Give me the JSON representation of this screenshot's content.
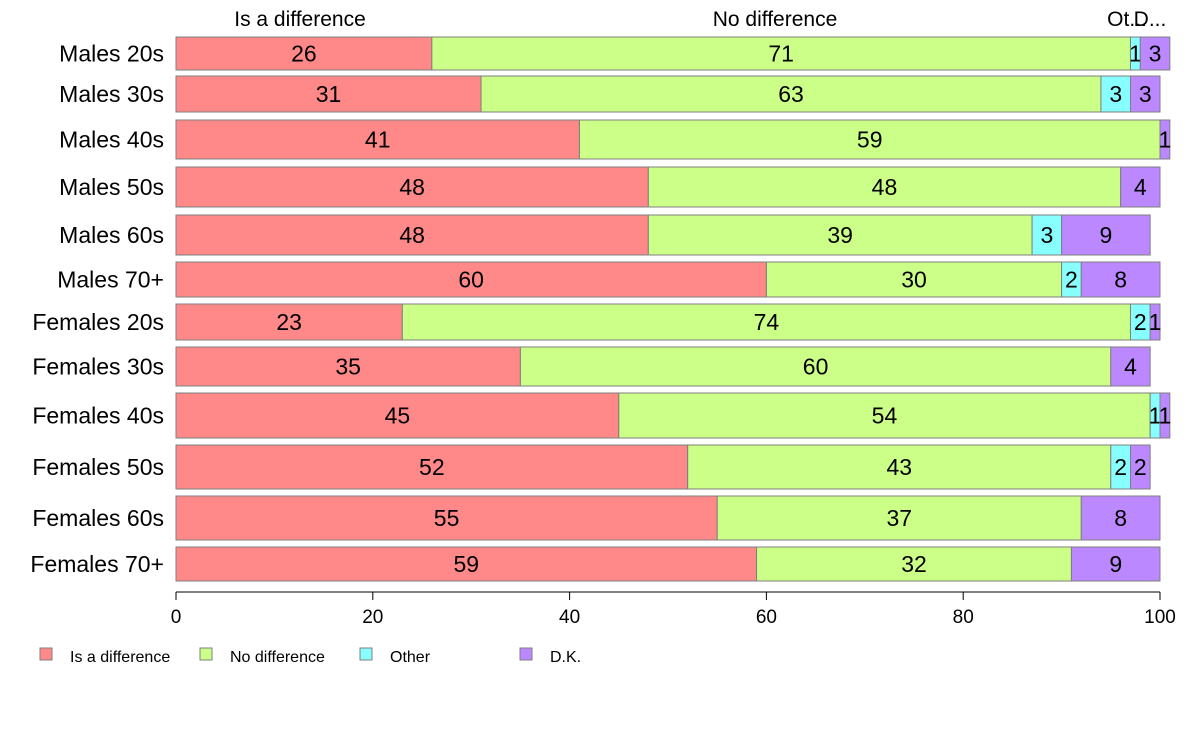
{
  "chart_data": {
    "type": "bar",
    "orientation": "horizontal",
    "stacked": true,
    "categories": [
      "Males 20s",
      "Males 30s",
      "Males 40s",
      "Males 50s",
      "Males 60s",
      "Males 70+",
      "Females 20s",
      "Females 30s",
      "Females 40s",
      "Females 50s",
      "Females 60s",
      "Females 70+"
    ],
    "series": [
      {
        "name": "Is a difference",
        "color": "#FF8888",
        "values": [
          26,
          31,
          41,
          48,
          48,
          60,
          23,
          35,
          45,
          52,
          55,
          59
        ]
      },
      {
        "name": "No difference",
        "color": "#CCFF88",
        "values": [
          71,
          63,
          59,
          48,
          39,
          30,
          74,
          60,
          54,
          43,
          37,
          32
        ]
      },
      {
        "name": "Other",
        "color": "#88FFFF",
        "values": [
          1,
          3,
          0,
          0,
          3,
          2,
          2,
          0,
          1,
          2,
          0,
          0
        ]
      },
      {
        "name": "D.K.",
        "color": "#BB88FF",
        "values": [
          3,
          3,
          1,
          4,
          9,
          8,
          1,
          4,
          1,
          2,
          8,
          9
        ]
      }
    ],
    "top_labels": [
      "Is a difference",
      "No difference",
      "Ot...",
      "D..."
    ],
    "xlim": [
      0,
      100
    ],
    "xticks": [
      "0",
      "20",
      "40",
      "60",
      "80",
      "100"
    ],
    "grid": false,
    "legend_position": "bottom-left",
    "legend": [
      "Is a difference",
      "No difference",
      "Other",
      "D.K."
    ]
  }
}
